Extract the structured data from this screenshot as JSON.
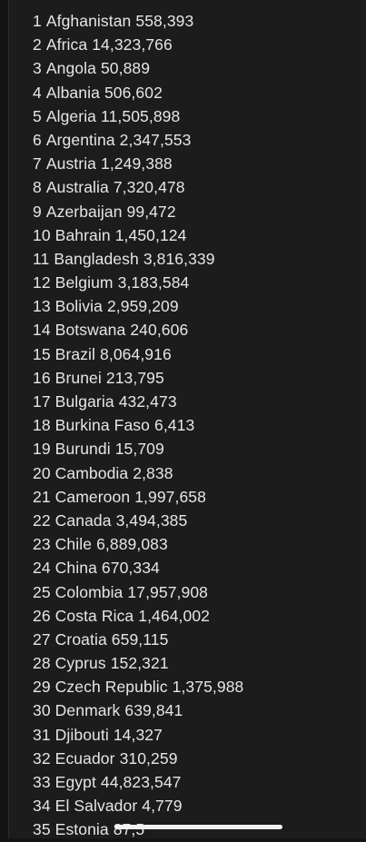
{
  "list": [
    {
      "rank": "1",
      "name": "Afghanistan",
      "value": "558,393"
    },
    {
      "rank": "2",
      "name": "Africa",
      "value": "14,323,766"
    },
    {
      "rank": "3",
      "name": "Angola",
      "value": "50,889"
    },
    {
      "rank": "4",
      "name": "Albania",
      "value": "506,602"
    },
    {
      "rank": "5",
      "name": "Algeria",
      "value": "11,505,898"
    },
    {
      "rank": "6",
      "name": "Argentina",
      "value": "2,347,553"
    },
    {
      "rank": "7",
      "name": "Austria",
      "value": "1,249,388"
    },
    {
      "rank": "8",
      "name": "Australia",
      "value": "7,320,478"
    },
    {
      "rank": "9",
      "name": "Azerbaijan",
      "value": "99,472"
    },
    {
      "rank": "10",
      "name": "Bahrain",
      "value": "1,450,124"
    },
    {
      "rank": "11",
      "name": "Bangladesh",
      "value": "3,816,339"
    },
    {
      "rank": "12",
      "name": "Belgium",
      "value": "3,183,584"
    },
    {
      "rank": "13",
      "name": "Bolivia",
      "value": "2,959,209"
    },
    {
      "rank": "14",
      "name": "Botswana",
      "value": "240,606"
    },
    {
      "rank": "15",
      "name": "Brazil",
      "value": "8,064,916"
    },
    {
      "rank": "16",
      "name": "Brunei",
      "value": "213,795"
    },
    {
      "rank": "17",
      "name": "Bulgaria",
      "value": "432,473"
    },
    {
      "rank": "18",
      "name": "Burkina Faso",
      "value": "6,413"
    },
    {
      "rank": "19",
      "name": "Burundi",
      "value": "15,709"
    },
    {
      "rank": "20",
      "name": "Cambodia",
      "value": "2,838"
    },
    {
      "rank": "21",
      "name": "Cameroon",
      "value": "1,997,658"
    },
    {
      "rank": "22",
      "name": "Canada",
      "value": "3,494,385"
    },
    {
      "rank": "23",
      "name": "Chile",
      "value": "6,889,083"
    },
    {
      "rank": "24",
      "name": "China",
      "value": "670,334"
    },
    {
      "rank": "25",
      "name": "Colombia",
      "value": "17,957,908"
    },
    {
      "rank": "26",
      "name": "Costa Rica",
      "value": "1,464,002"
    },
    {
      "rank": "27",
      "name": "Croatia",
      "value": "659,115"
    },
    {
      "rank": "28",
      "name": "Cyprus",
      "value": "152,321"
    },
    {
      "rank": "29",
      "name": "Czech Republic",
      "value": "1,375,988"
    },
    {
      "rank": "30",
      "name": "Denmark",
      "value": "639,841"
    },
    {
      "rank": "31",
      "name": "Djibouti",
      "value": "14,327"
    },
    {
      "rank": "32",
      "name": "Ecuador",
      "value": "310,259"
    },
    {
      "rank": "33",
      "name": "Egypt",
      "value": "44,823,547"
    },
    {
      "rank": "34",
      "name": "El Salvador",
      "value": "4,779"
    },
    {
      "rank": "35",
      "name": "Estonia",
      "value": "87,5"
    }
  ]
}
